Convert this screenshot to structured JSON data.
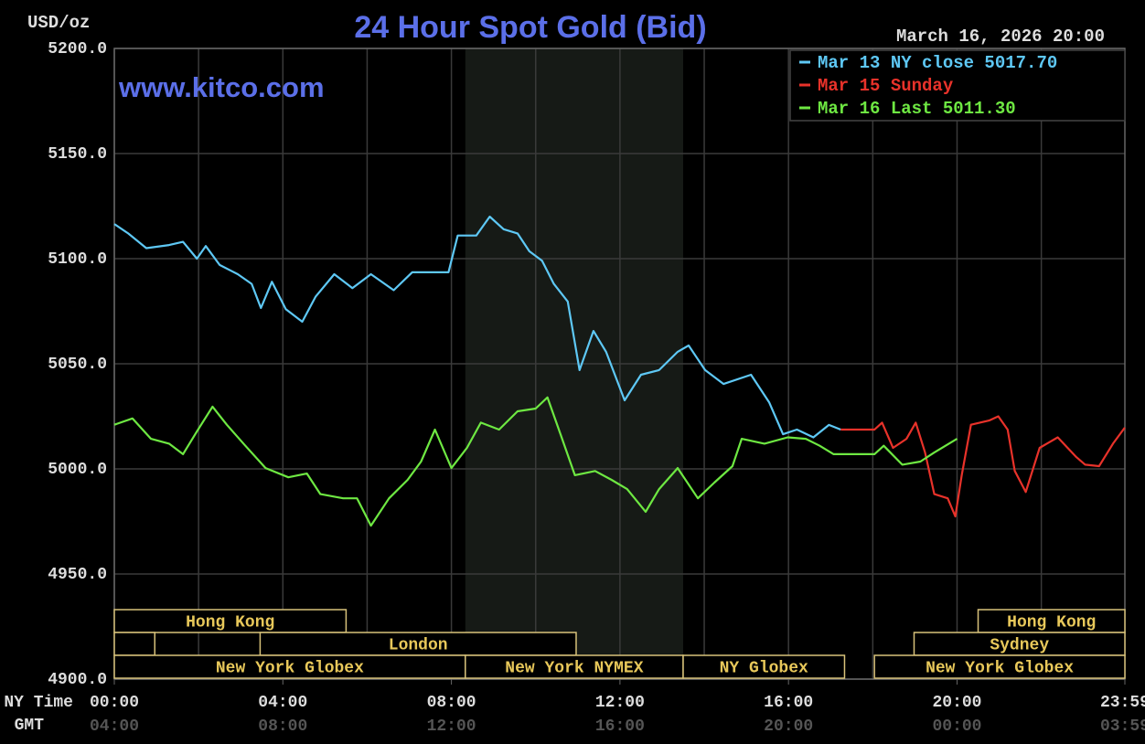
{
  "chart_data": {
    "type": "line",
    "title": "24 Hour Spot Gold (Bid)",
    "y_axis_label": "USD/oz",
    "watermark": "www.kitco.com",
    "timestamp": "March 16, 2026 20:00",
    "x_axis_label": "NY Time",
    "x2_axis_label": "GMT",
    "xlim": [
      0,
      23.983
    ],
    "ylim": [
      4900,
      5200
    ],
    "xticks": [
      {
        "value": 0,
        "label": "00:00"
      },
      {
        "value": 4,
        "label": "04:00"
      },
      {
        "value": 8,
        "label": "08:00"
      },
      {
        "value": 12,
        "label": "12:00"
      },
      {
        "value": 16,
        "label": "16:00"
      },
      {
        "value": 20,
        "label": "20:00"
      },
      {
        "value": 23.983,
        "label": "23:59"
      }
    ],
    "gmt_labels": [
      "04:00",
      "08:00",
      "12:00",
      "16:00",
      "20:00",
      "00:00",
      "03:59"
    ],
    "xgrid": [
      0,
      2,
      4,
      6,
      8,
      10,
      12,
      14,
      16,
      18,
      20,
      22
    ],
    "yticks": [
      {
        "value": 4900,
        "label": "4900.0"
      },
      {
        "value": 4950,
        "label": "4950.0"
      },
      {
        "value": 5000,
        "label": "5000.0"
      },
      {
        "value": 5050,
        "label": "5050.0"
      },
      {
        "value": 5100,
        "label": "5100.0"
      },
      {
        "value": 5150,
        "label": "5150.0"
      },
      {
        "value": 5200,
        "label": "5200.0"
      }
    ],
    "grid": true,
    "legend": "top-right",
    "shaded": [
      8.33,
      13.5
    ],
    "session_rows": [
      [
        {
          "label": "Hong Kong",
          "start": 0,
          "end": 5.5
        },
        {
          "label": "Hong Kong",
          "start": 20.5,
          "end": 23.983
        }
      ],
      [
        {
          "label": null,
          "start": 0,
          "end": 0.96
        },
        {
          "label": "London",
          "start": 3.46,
          "end": 10.96
        },
        {
          "label": "Sydney",
          "start": 18.98,
          "end": 23.983
        }
      ],
      [
        {
          "label": "New York Globex",
          "start": 0,
          "end": 8.33
        },
        {
          "label": "New York NYMEX",
          "start": 8.33,
          "end": 13.5
        },
        {
          "label": "NY Globex",
          "start": 13.5,
          "end": 17.33
        },
        {
          "label": "New York Globex",
          "start": 18.04,
          "end": 23.983
        }
      ]
    ],
    "series": [
      {
        "name": "Mar 13 NY close 5017.70",
        "color": "#5ec8f5",
        "x": [
          0,
          0.33,
          0.76,
          1.3,
          1.63,
          1.96,
          2.17,
          2.5,
          2.93,
          3.26,
          3.48,
          3.74,
          4.07,
          4.46,
          4.78,
          5.22,
          5.65,
          6.09,
          6.63,
          7.07,
          7.93,
          8.15,
          8.59,
          8.91,
          9.24,
          9.57,
          9.85,
          10.15,
          10.43,
          10.76,
          11.04,
          11.37,
          11.67,
          12.11,
          12.5,
          12.93,
          13.37,
          13.63,
          14.02,
          14.46,
          15.11,
          15.54,
          15.87,
          16.2,
          16.59,
          16.96,
          17.24
        ],
        "values": [
          5116.5,
          5112,
          5105,
          5106.5,
          5108,
          5100,
          5106,
          5097,
          5092.6,
          5088,
          5076.5,
          5089,
          5076,
          5070,
          5082,
          5092.6,
          5086,
          5092.6,
          5085,
          5093.5,
          5093.5,
          5111,
          5111,
          5120,
          5114,
          5112,
          5103.5,
          5099,
          5088,
          5079.6,
          5047,
          5065.6,
          5055.7,
          5032.6,
          5044.8,
          5047,
          5055.7,
          5058.7,
          5047,
          5040.4,
          5044.8,
          5031.7,
          5016.5,
          5018.7,
          5015,
          5020.9,
          5018.7
        ]
      },
      {
        "name": "Mar 15 Sunday",
        "color": "#e8322a",
        "x": [
          17.24,
          18.04,
          18.22,
          18.48,
          18.8,
          19.02,
          19.24,
          19.46,
          19.78,
          19.96,
          20.11,
          20.33,
          20.76,
          20.98,
          21.2,
          21.37,
          21.63,
          21.96,
          22.39,
          22.83,
          23.04,
          23.37,
          23.7,
          23.98
        ],
        "values": [
          5018.7,
          5018.7,
          5022,
          5010,
          5014.3,
          5022,
          5007.8,
          4988,
          4986,
          4977.4,
          4997,
          5021,
          5023,
          5025,
          5018.7,
          4999,
          4989,
          5010,
          5015,
          5005.6,
          5002,
          5001.3,
          5012,
          5019.6
        ]
      },
      {
        "name": "Mar 16 Last 5011.30",
        "color": "#6ee842",
        "x": [
          0,
          0.43,
          0.87,
          1.3,
          1.63,
          1.96,
          2.33,
          2.67,
          3.11,
          3.59,
          4.13,
          4.57,
          4.89,
          5.43,
          5.76,
          6.09,
          6.52,
          6.96,
          7.28,
          7.61,
          8,
          8.37,
          8.7,
          9.13,
          9.57,
          10,
          10.28,
          10.59,
          10.93,
          11.41,
          11.8,
          12.17,
          12.61,
          12.93,
          13.37,
          13.85,
          14.24,
          14.67,
          14.89,
          15.43,
          15.98,
          16.41,
          16.74,
          17.07,
          18.04,
          18.26,
          18.7,
          19.13,
          19.46,
          20
        ],
        "values": [
          5021,
          5024,
          5014.3,
          5012,
          5007,
          5017.8,
          5029.6,
          5021,
          5011,
          5000.4,
          4996,
          4997.8,
          4988,
          4986,
          4986,
          4973,
          4986,
          4994.8,
          5003.5,
          5018.7,
          5000.4,
          5010,
          5022,
          5018.7,
          5027.4,
          5028.7,
          5034,
          5016.5,
          4997,
          4999,
          4994.8,
          4990.4,
          4979.6,
          4990.4,
          5000.4,
          4986,
          4993.5,
          5001.3,
          5014.3,
          5012,
          5015,
          5014.3,
          5011,
          5007,
          5007,
          5011,
          5002,
          5003.5,
          5007.8,
          5014.3
        ]
      }
    ]
  }
}
